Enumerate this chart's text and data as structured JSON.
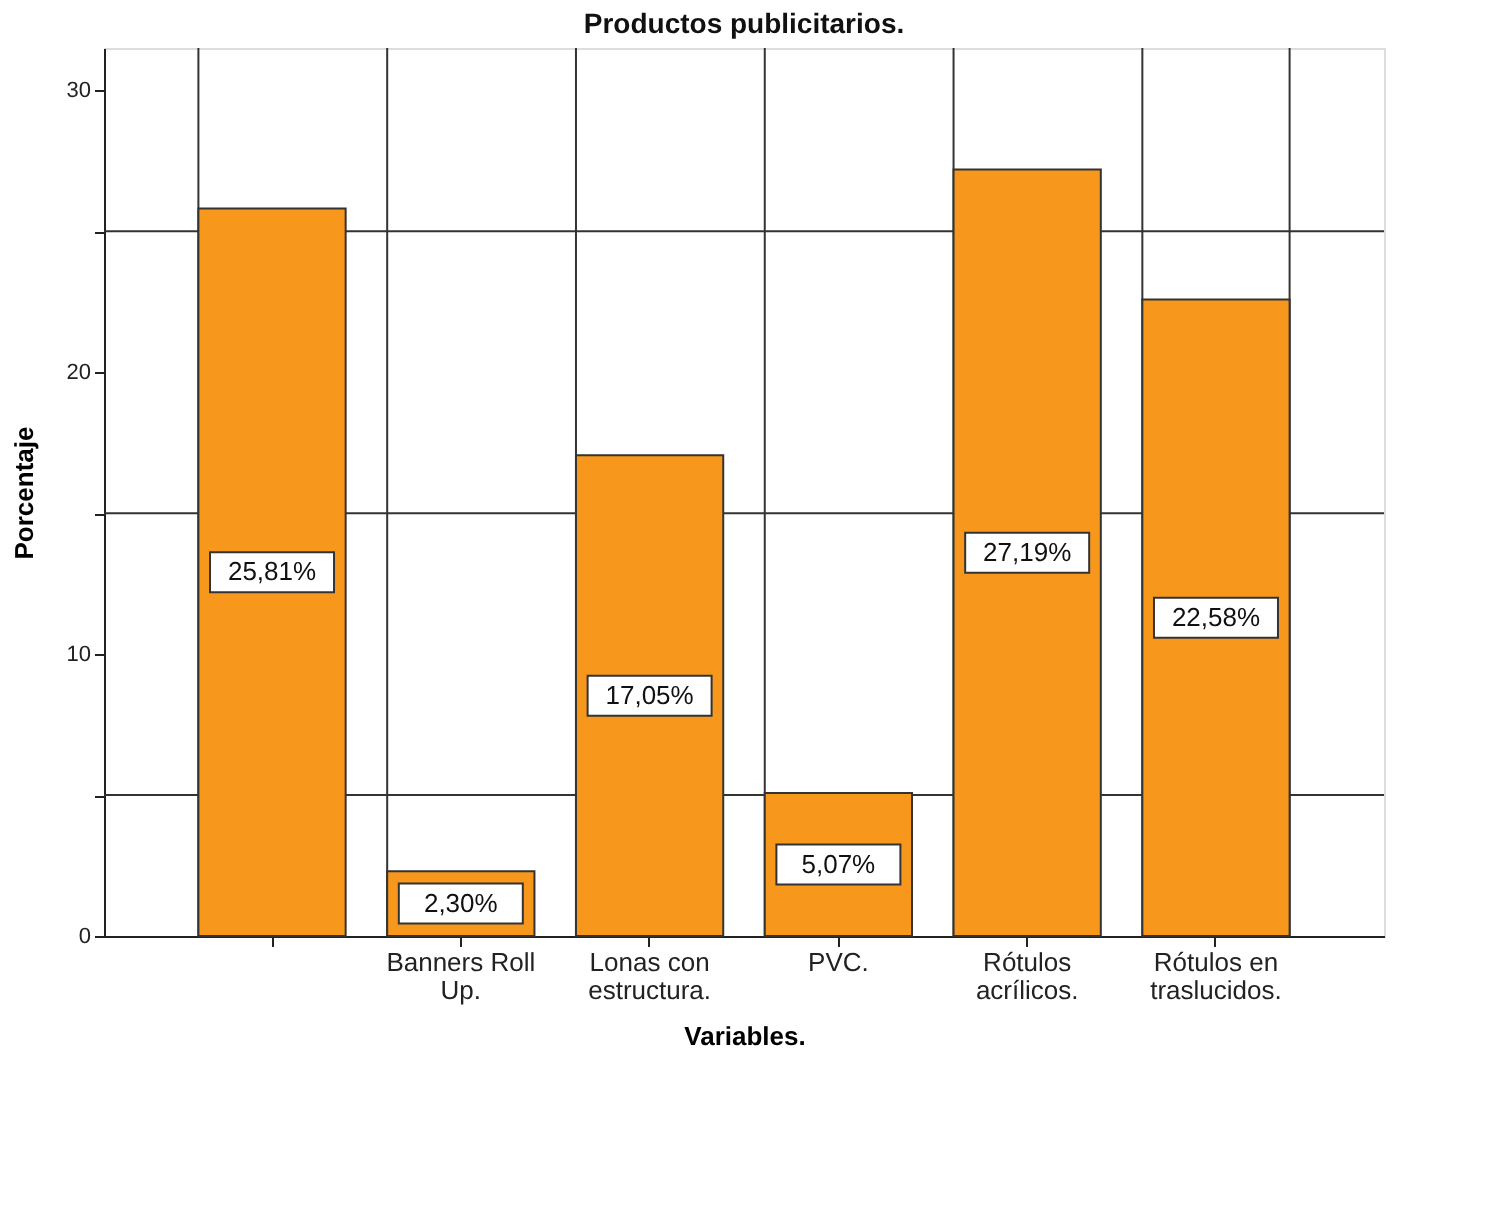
{
  "chart_data": {
    "type": "bar",
    "title": "Productos publicitarios.",
    "xlabel": "Variables.",
    "ylabel": "Porcentaje",
    "categories": [
      null,
      "Banners Roll Up.",
      "Lonas con estructura.",
      "PVC.",
      "Rótulos acrílicos.",
      "Rótulos en traslucidos."
    ],
    "values": [
      25.81,
      2.3,
      17.05,
      5.07,
      27.19,
      22.58
    ],
    "value_labels": [
      "25,81%",
      "2,30%",
      "17,05%",
      "5,07%",
      "27,19%",
      "22,58%"
    ],
    "color": "#f7981d",
    "ylim": [
      0,
      31.5
    ],
    "yticks": [
      0,
      {
        "value": 5,
        "label": null
      },
      10,
      {
        "value": 15,
        "label": null
      },
      20,
      {
        "value": 25,
        "label": null
      },
      30
    ],
    "grid": true
  }
}
